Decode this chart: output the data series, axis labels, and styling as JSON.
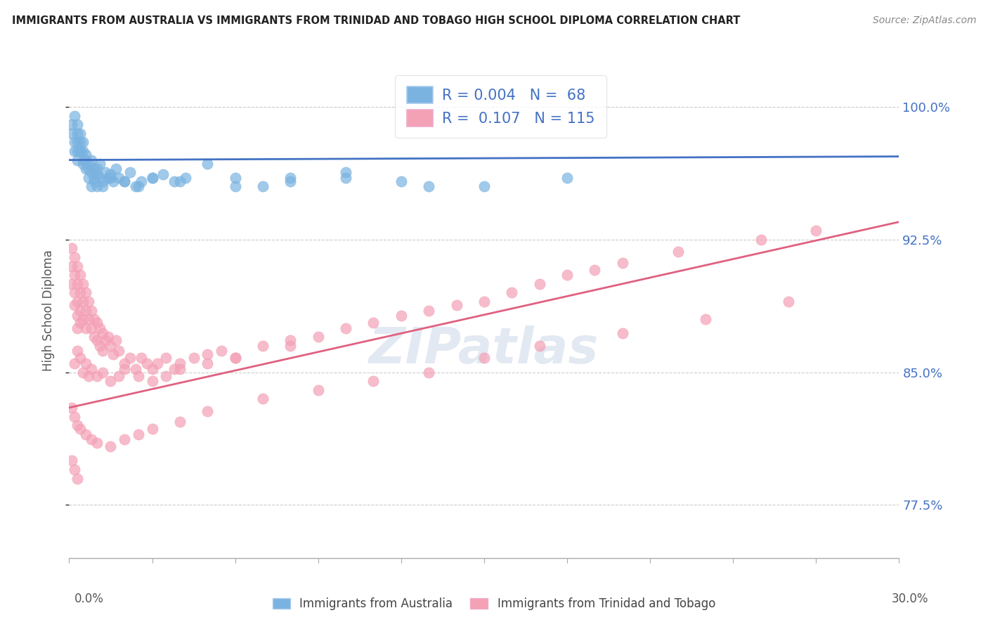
{
  "title": "IMMIGRANTS FROM AUSTRALIA VS IMMIGRANTS FROM TRINIDAD AND TOBAGO HIGH SCHOOL DIPLOMA CORRELATION CHART",
  "source": "Source: ZipAtlas.com",
  "ylabel": "High School Diploma",
  "y_ticks": [
    0.775,
    0.85,
    0.925,
    1.0
  ],
  "y_tick_labels": [
    "77.5%",
    "85.0%",
    "92.5%",
    "100.0%"
  ],
  "x_min": 0.0,
  "x_max": 0.3,
  "y_min": 0.745,
  "y_max": 1.025,
  "australia_R": 0.004,
  "australia_N": 68,
  "tt_R": 0.107,
  "tt_N": 115,
  "color_australia": "#7ab3e0",
  "color_tt": "#f4a0b5",
  "color_line_australia": "#4472c4",
  "color_line_tt": "#e06080",
  "color_text_blue": "#4472c4",
  "legend_label_australia": "Immigrants from Australia",
  "legend_label_tt": "Immigrants from Trinidad and Tobago",
  "watermark": "ZIPatlas",
  "aus_line_y_at_0": 0.97,
  "aus_line_y_at_30": 0.972,
  "tt_line_y_at_0": 0.83,
  "tt_line_y_at_30": 0.935,
  "australia_x": [
    0.001,
    0.001,
    0.002,
    0.002,
    0.002,
    0.003,
    0.003,
    0.003,
    0.003,
    0.004,
    0.004,
    0.004,
    0.005,
    0.005,
    0.005,
    0.006,
    0.006,
    0.007,
    0.007,
    0.008,
    0.008,
    0.009,
    0.009,
    0.01,
    0.01,
    0.011,
    0.011,
    0.012,
    0.013,
    0.014,
    0.015,
    0.016,
    0.017,
    0.018,
    0.02,
    0.022,
    0.024,
    0.026,
    0.03,
    0.034,
    0.038,
    0.042,
    0.05,
    0.06,
    0.07,
    0.08,
    0.1,
    0.12,
    0.15,
    0.18,
    0.003,
    0.004,
    0.005,
    0.006,
    0.007,
    0.008,
    0.009,
    0.01,
    0.012,
    0.015,
    0.02,
    0.025,
    0.03,
    0.04,
    0.06,
    0.08,
    0.1,
    0.13
  ],
  "australia_y": [
    0.99,
    0.985,
    0.98,
    0.975,
    0.995,
    0.985,
    0.98,
    0.975,
    0.99,
    0.975,
    0.98,
    0.985,
    0.97,
    0.975,
    0.98,
    0.965,
    0.97,
    0.96,
    0.968,
    0.955,
    0.963,
    0.958,
    0.965,
    0.955,
    0.962,
    0.96,
    0.968,
    0.958,
    0.963,
    0.96,
    0.962,
    0.958,
    0.965,
    0.96,
    0.958,
    0.963,
    0.955,
    0.958,
    0.96,
    0.962,
    0.958,
    0.96,
    0.968,
    0.96,
    0.955,
    0.96,
    0.963,
    0.958,
    0.955,
    0.96,
    0.97,
    0.975,
    0.968,
    0.973,
    0.965,
    0.97,
    0.96,
    0.965,
    0.955,
    0.96,
    0.958,
    0.955,
    0.96,
    0.958,
    0.955,
    0.958,
    0.96,
    0.955
  ],
  "tt_x": [
    0.001,
    0.001,
    0.001,
    0.002,
    0.002,
    0.002,
    0.002,
    0.003,
    0.003,
    0.003,
    0.003,
    0.003,
    0.004,
    0.004,
    0.004,
    0.004,
    0.005,
    0.005,
    0.005,
    0.006,
    0.006,
    0.006,
    0.007,
    0.007,
    0.008,
    0.008,
    0.009,
    0.009,
    0.01,
    0.01,
    0.011,
    0.011,
    0.012,
    0.012,
    0.013,
    0.014,
    0.015,
    0.016,
    0.017,
    0.018,
    0.02,
    0.022,
    0.024,
    0.026,
    0.028,
    0.03,
    0.032,
    0.035,
    0.038,
    0.04,
    0.045,
    0.05,
    0.055,
    0.06,
    0.07,
    0.08,
    0.09,
    0.1,
    0.11,
    0.12,
    0.13,
    0.14,
    0.15,
    0.16,
    0.17,
    0.18,
    0.19,
    0.2,
    0.22,
    0.25,
    0.27,
    0.002,
    0.003,
    0.004,
    0.005,
    0.006,
    0.007,
    0.008,
    0.01,
    0.012,
    0.015,
    0.018,
    0.02,
    0.025,
    0.03,
    0.035,
    0.04,
    0.05,
    0.06,
    0.08,
    0.001,
    0.002,
    0.003,
    0.004,
    0.006,
    0.008,
    0.01,
    0.015,
    0.02,
    0.025,
    0.03,
    0.04,
    0.05,
    0.07,
    0.09,
    0.11,
    0.13,
    0.15,
    0.17,
    0.2,
    0.23,
    0.26,
    0.001,
    0.002,
    0.003
  ],
  "tt_y": [
    0.92,
    0.91,
    0.9,
    0.915,
    0.905,
    0.895,
    0.888,
    0.91,
    0.9,
    0.89,
    0.882,
    0.875,
    0.905,
    0.895,
    0.885,
    0.878,
    0.9,
    0.89,
    0.88,
    0.895,
    0.885,
    0.875,
    0.89,
    0.88,
    0.885,
    0.875,
    0.88,
    0.87,
    0.878,
    0.868,
    0.875,
    0.865,
    0.872,
    0.862,
    0.868,
    0.87,
    0.865,
    0.86,
    0.868,
    0.862,
    0.855,
    0.858,
    0.852,
    0.858,
    0.855,
    0.852,
    0.855,
    0.858,
    0.852,
    0.855,
    0.858,
    0.86,
    0.862,
    0.858,
    0.865,
    0.868,
    0.87,
    0.875,
    0.878,
    0.882,
    0.885,
    0.888,
    0.89,
    0.895,
    0.9,
    0.905,
    0.908,
    0.912,
    0.918,
    0.925,
    0.93,
    0.855,
    0.862,
    0.858,
    0.85,
    0.855,
    0.848,
    0.852,
    0.848,
    0.85,
    0.845,
    0.848,
    0.852,
    0.848,
    0.845,
    0.848,
    0.852,
    0.855,
    0.858,
    0.865,
    0.83,
    0.825,
    0.82,
    0.818,
    0.815,
    0.812,
    0.81,
    0.808,
    0.812,
    0.815,
    0.818,
    0.822,
    0.828,
    0.835,
    0.84,
    0.845,
    0.85,
    0.858,
    0.865,
    0.872,
    0.88,
    0.89,
    0.8,
    0.795,
    0.79
  ]
}
